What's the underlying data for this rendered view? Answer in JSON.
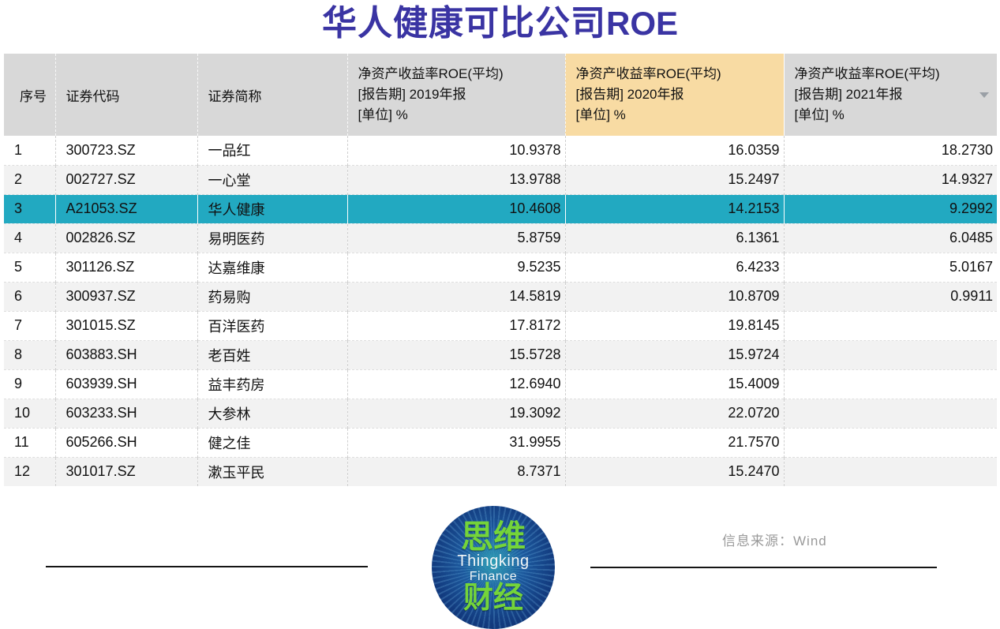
{
  "title": {
    "cn": "华人健康可比公司",
    "en": "ROE"
  },
  "table": {
    "columns": [
      {
        "label": "序号"
      },
      {
        "label": "证券代码"
      },
      {
        "label": "证券简称"
      }
    ],
    "roe_headers": [
      {
        "title": "净资产收益率ROE(平均)",
        "period": "[报告期] 2019年报",
        "unit": "[单位] %",
        "highlighted": false
      },
      {
        "title": "净资产收益率ROE(平均)",
        "period": "[报告期] 2020年报",
        "unit": "[单位] %",
        "highlighted": true
      },
      {
        "title": "净资产收益率ROE(平均)",
        "period": "[报告期] 2021年报",
        "unit": "[单位] %",
        "highlighted": false
      }
    ],
    "rows": [
      {
        "no": "1",
        "code": "300723.SZ",
        "name": "一品红",
        "roe2019": "10.9378",
        "roe2020": "16.0359",
        "roe2021": "18.2730",
        "highlight": false
      },
      {
        "no": "2",
        "code": "002727.SZ",
        "name": "一心堂",
        "roe2019": "13.9788",
        "roe2020": "15.2497",
        "roe2021": "14.9327",
        "highlight": false
      },
      {
        "no": "3",
        "code": "A21053.SZ",
        "name": "华人健康",
        "roe2019": "10.4608",
        "roe2020": "14.2153",
        "roe2021": "9.2992",
        "highlight": true
      },
      {
        "no": "4",
        "code": "002826.SZ",
        "name": "易明医药",
        "roe2019": "5.8759",
        "roe2020": "6.1361",
        "roe2021": "6.0485",
        "highlight": false
      },
      {
        "no": "5",
        "code": "301126.SZ",
        "name": "达嘉维康",
        "roe2019": "9.5235",
        "roe2020": "6.4233",
        "roe2021": "5.0167",
        "highlight": false
      },
      {
        "no": "6",
        "code": "300937.SZ",
        "name": "药易购",
        "roe2019": "14.5819",
        "roe2020": "10.8709",
        "roe2021": "0.9911",
        "highlight": false
      },
      {
        "no": "7",
        "code": "301015.SZ",
        "name": "百洋医药",
        "roe2019": "17.8172",
        "roe2020": "19.8145",
        "roe2021": "",
        "highlight": false
      },
      {
        "no": "8",
        "code": "603883.SH",
        "name": "老百姓",
        "roe2019": "15.5728",
        "roe2020": "15.9724",
        "roe2021": "",
        "highlight": false
      },
      {
        "no": "9",
        "code": "603939.SH",
        "name": "益丰药房",
        "roe2019": "12.6940",
        "roe2020": "15.4009",
        "roe2021": "",
        "highlight": false
      },
      {
        "no": "10",
        "code": "603233.SH",
        "name": "大参林",
        "roe2019": "19.3092",
        "roe2020": "22.0720",
        "roe2021": "",
        "highlight": false
      },
      {
        "no": "11",
        "code": "605266.SH",
        "name": "健之佳",
        "roe2019": "31.9955",
        "roe2020": "21.7570",
        "roe2021": "",
        "highlight": false
      },
      {
        "no": "12",
        "code": "301017.SZ",
        "name": "漱玉平民",
        "roe2019": "8.7371",
        "roe2020": "15.2470",
        "roe2021": "",
        "highlight": false
      }
    ]
  },
  "footer": {
    "source": "信息来源：Wind"
  },
  "logo": {
    "cn_top": "思维",
    "en_line1": "Thingking",
    "en_line2": "Finance",
    "cn_bottom": "财经"
  },
  "colors": {
    "title": "#3a34a3",
    "header_bg": "#d8d8d8",
    "header_highlight_bg": "#f8dba3",
    "row_alt_bg": "#f2f2f2",
    "row_highlight_bg": "#22a9c1",
    "source_text": "#9a9a9a",
    "logo_green": "#74d43a",
    "logo_navy": "#123a7e"
  }
}
